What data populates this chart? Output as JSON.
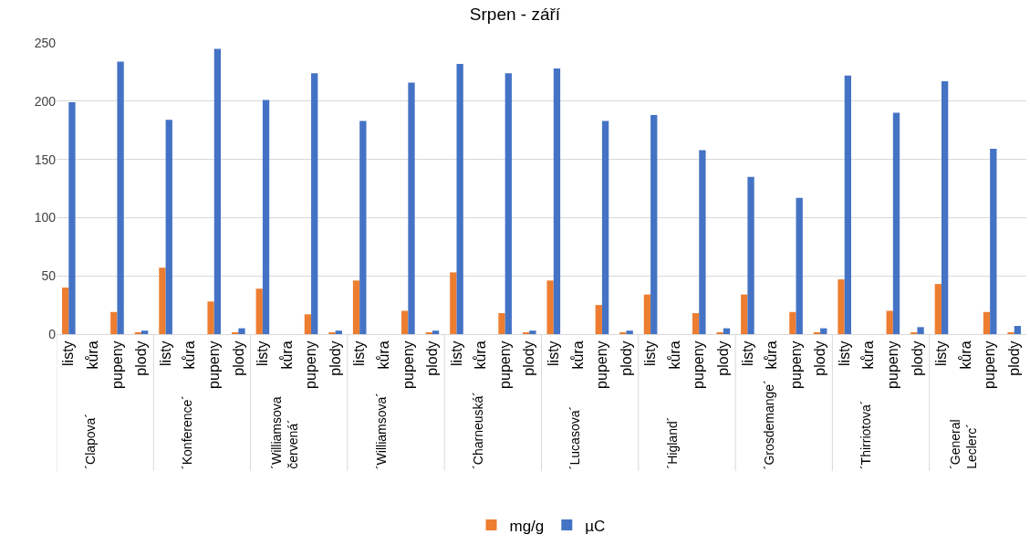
{
  "chart_data": {
    "type": "bar",
    "title": "Srpen - září",
    "categories": [
      "listy",
      "kůra",
      "pupeny",
      "plody",
      "listy",
      "kůra",
      "pupeny",
      "plody",
      "listy",
      "kůra",
      "pupeny",
      "plody",
      "listy",
      "kůra",
      "pupeny",
      "plody",
      "listy",
      "kůra",
      "pupeny",
      "plody",
      "listy",
      "kůra",
      "pupeny",
      "plody",
      "listy",
      "kůra",
      "pupeny",
      "plody",
      "listy",
      "kůra",
      "pupeny",
      "plody",
      "listy",
      "kůra",
      "pupeny",
      "plody",
      "listy",
      "kůra",
      "pupeny",
      "plody"
    ],
    "series": [
      {
        "name": "mg/g",
        "color": "#ed7d31",
        "values": [
          40,
          null,
          19,
          1,
          57,
          null,
          28,
          1,
          39,
          null,
          17,
          1,
          46,
          null,
          20,
          1,
          53,
          null,
          18,
          1,
          46,
          null,
          25,
          1,
          34,
          null,
          18,
          1,
          34,
          null,
          19,
          1,
          47,
          null,
          20,
          1,
          43,
          null,
          19,
          1
        ]
      },
      {
        "name": "µC",
        "color": "#4472c4",
        "values": [
          199,
          null,
          234,
          3,
          184,
          null,
          245,
          5,
          201,
          null,
          224,
          3,
          183,
          null,
          216,
          3,
          232,
          null,
          224,
          3,
          228,
          null,
          183,
          3,
          188,
          null,
          158,
          5,
          135,
          null,
          117,
          5,
          222,
          null,
          190,
          6,
          217,
          null,
          159,
          7
        ]
      }
    ],
    "annotations": [
      "´Clapova´",
      "´Konference´",
      "´Williamsova\nčervená´",
      "´Williamsova´",
      "´Charneuská´",
      "´Lucasova´",
      "´Higland´",
      "´Grosdemange´",
      "´Thirriotova´",
      "´General\nLeclerc´"
    ],
    "ylim": [
      0,
      250
    ],
    "yticks": [
      0,
      50,
      100,
      150,
      200,
      250
    ],
    "grid": "y",
    "legend": "bottom"
  }
}
